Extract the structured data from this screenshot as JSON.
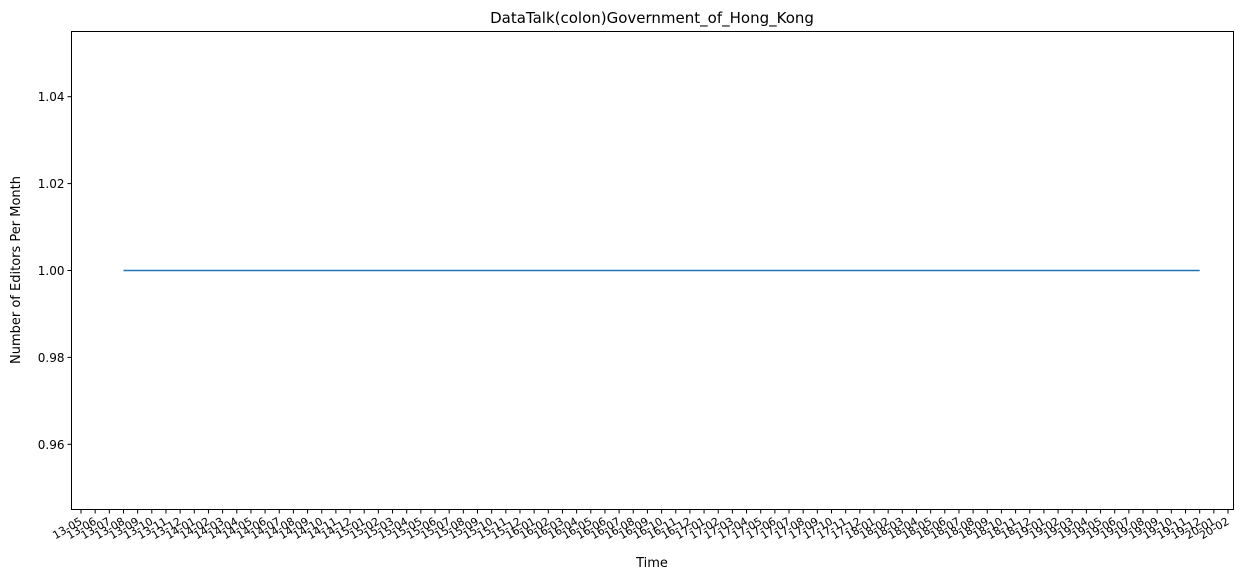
{
  "chart_data": {
    "type": "line",
    "title": "DataTalk(colon)Government_of_Hong_Kong",
    "xlabel": "Time",
    "ylabel": "Number of Editors Per Month",
    "x_ticks": [
      "13-05",
      "13-06",
      "13-07",
      "13-08",
      "13-09",
      "13-10",
      "13-11",
      "13-12",
      "14-01",
      "14-02",
      "14-03",
      "14-04",
      "14-05",
      "14-06",
      "14-07",
      "14-08",
      "14-09",
      "14-10",
      "14-11",
      "14-12",
      "15-01",
      "15-02",
      "15-03",
      "15-04",
      "15-05",
      "15-06",
      "15-07",
      "15-08",
      "15-09",
      "15-10",
      "15-11",
      "15-12",
      "16-01",
      "16-02",
      "16-03",
      "16-04",
      "16-05",
      "16-06",
      "16-07",
      "16-08",
      "16-09",
      "16-10",
      "16-11",
      "16-12",
      "17-01",
      "17-02",
      "17-03",
      "17-04",
      "17-05",
      "17-06",
      "17-07",
      "17-08",
      "17-09",
      "17-10",
      "17-11",
      "17-12",
      "18-01",
      "18-02",
      "18-03",
      "18-04",
      "18-05",
      "18-06",
      "18-07",
      "18-08",
      "18-09",
      "18-10",
      "18-11",
      "18-12",
      "19-01",
      "19-02",
      "19-03",
      "19-04",
      "19-05",
      "19-06",
      "19-07",
      "19-08",
      "19-09",
      "19-10",
      "19-11",
      "19-12",
      "20-01",
      "20-02"
    ],
    "y_ticks": [
      "0.96",
      "0.98",
      "1.00",
      "1.02",
      "1.04"
    ],
    "ylim": [
      0.945,
      1.055
    ],
    "series": [
      {
        "color": "#1f77b4",
        "points": [
          {
            "x": "13-08",
            "y": 1.0
          },
          {
            "x": "19-12",
            "y": 1.0
          }
        ]
      }
    ],
    "grid": false,
    "legend": "none"
  }
}
